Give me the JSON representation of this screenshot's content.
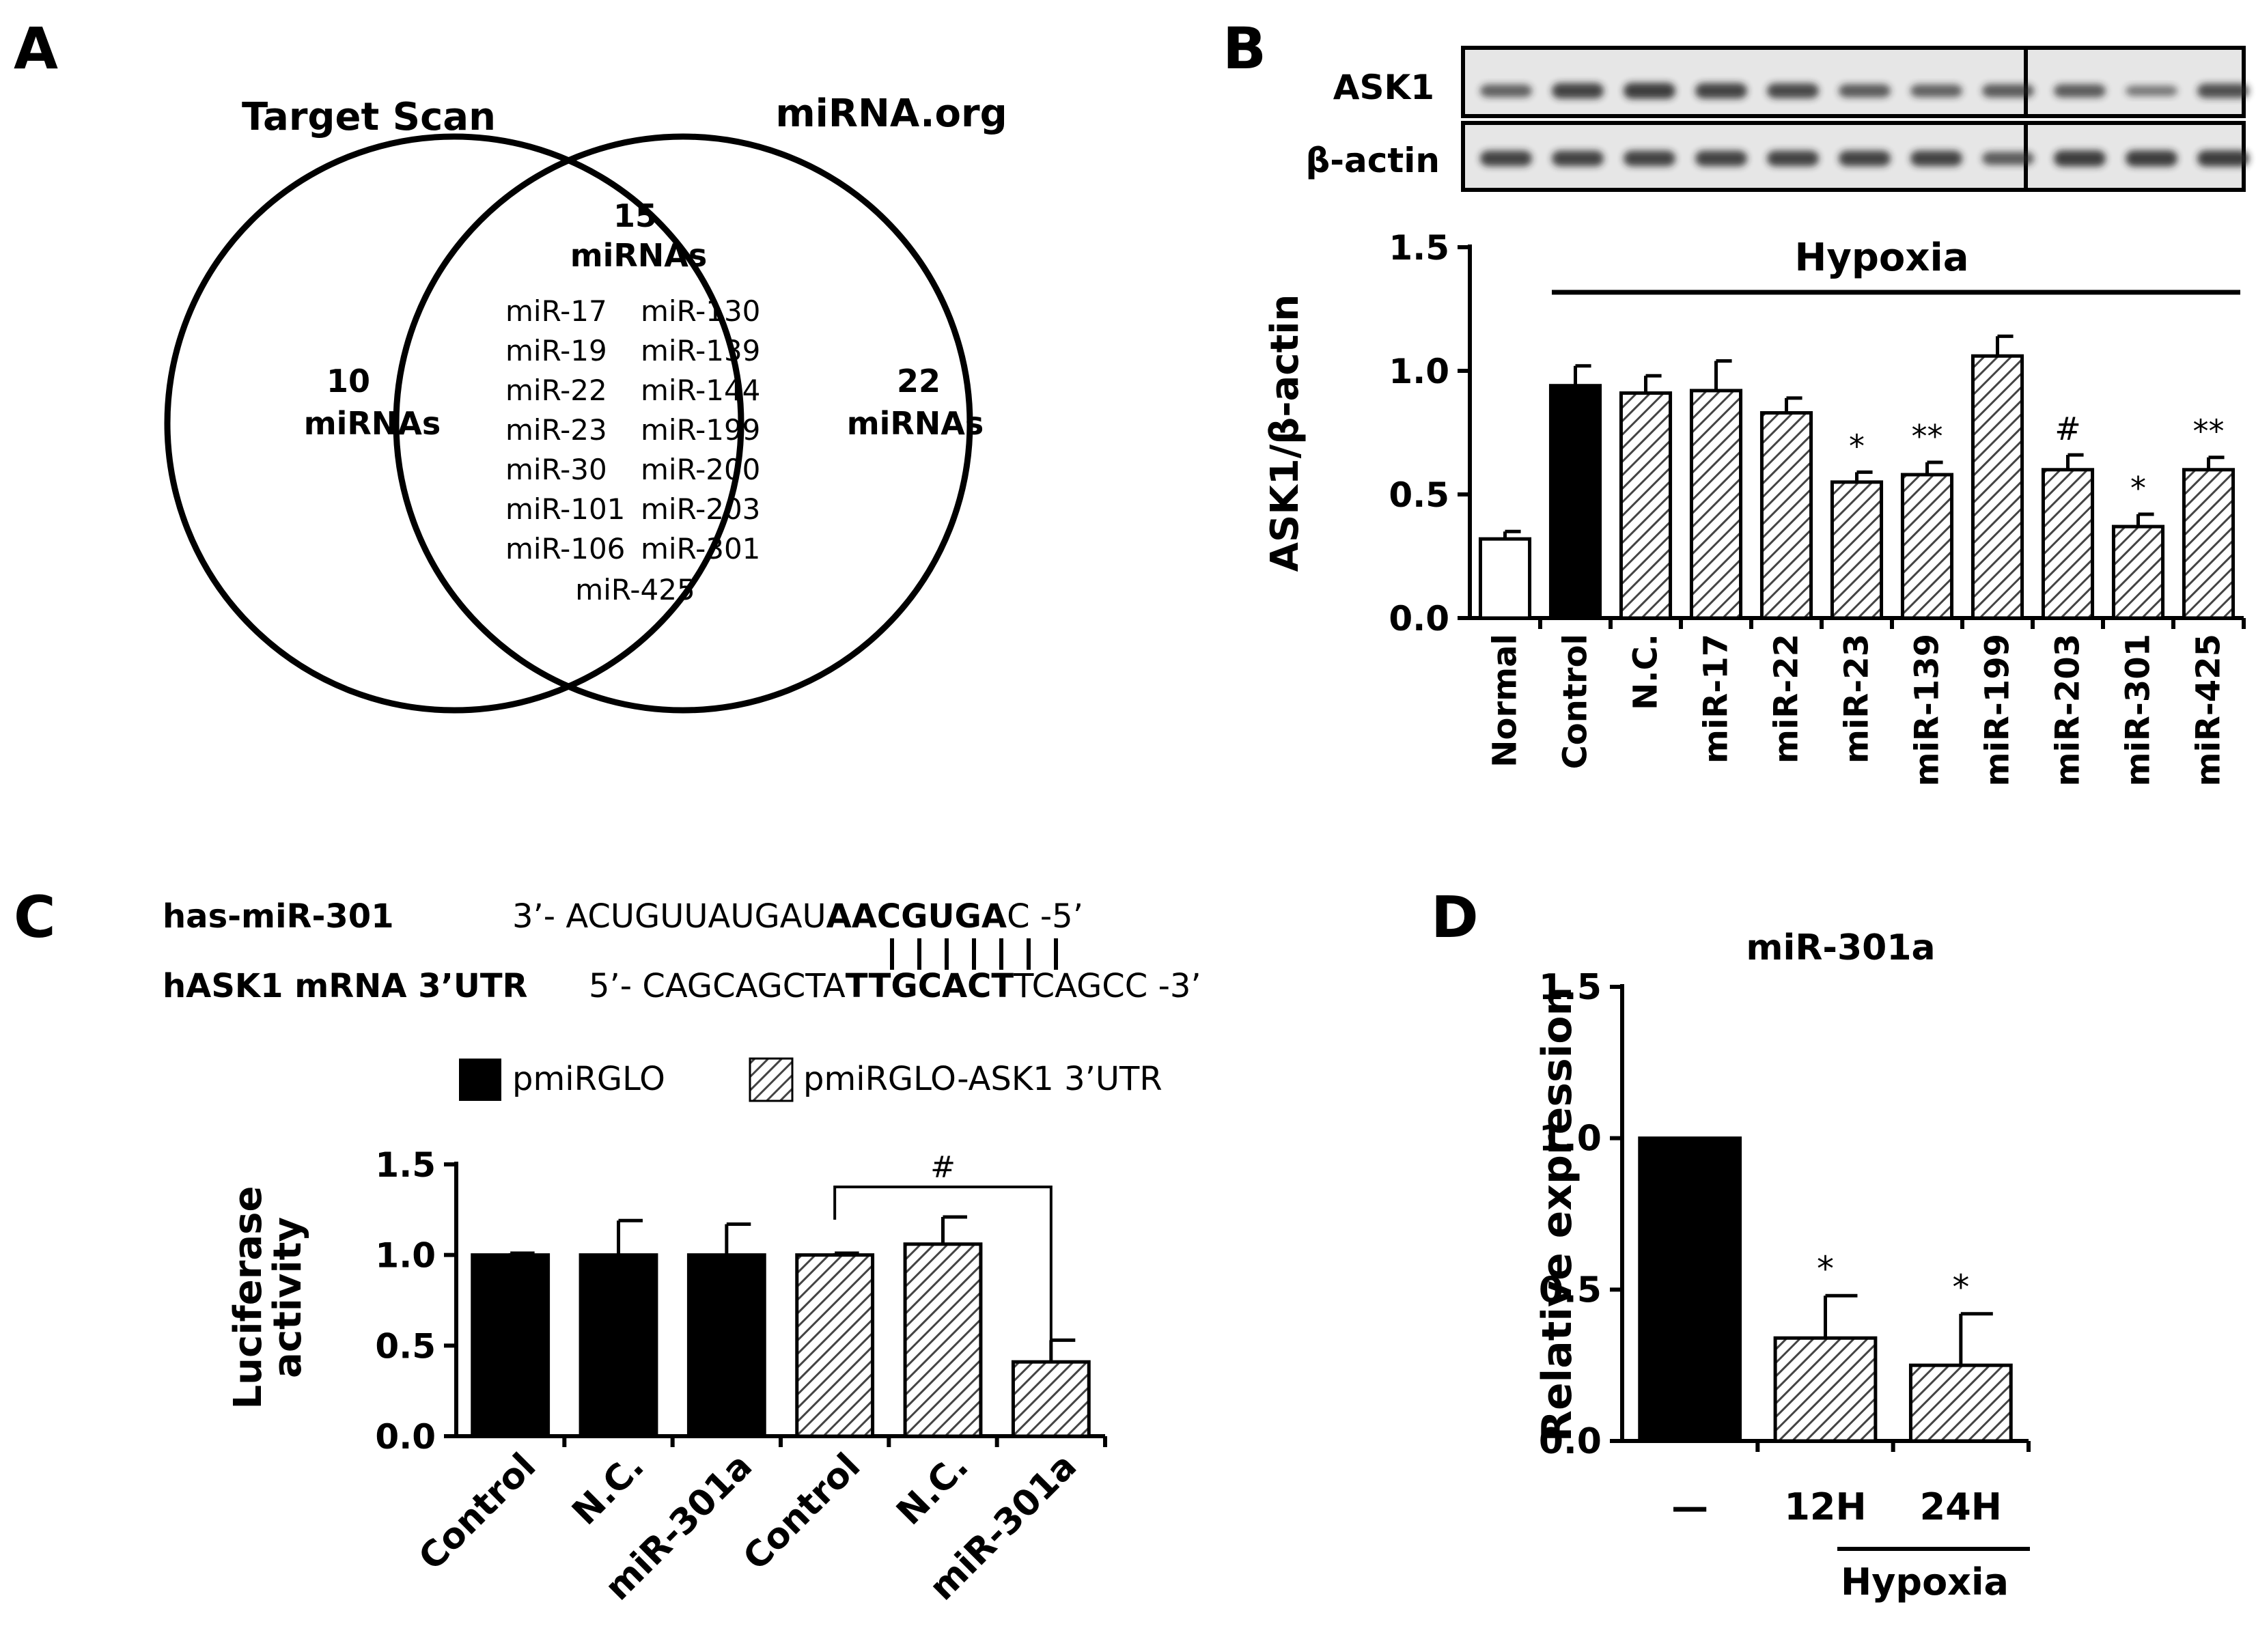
{
  "colors": {
    "black": "#000000",
    "white": "#ffffff",
    "hatch": "#444444",
    "blot_bg": "#e6e6e6",
    "band": "#222222"
  },
  "panelA": {
    "letter": "A",
    "left_title": "Target Scan",
    "right_title": "miRNA.org",
    "left_count": "10",
    "left_unit": "miRNAs",
    "right_count": "22",
    "right_unit": "miRNAs",
    "center_count": "15",
    "center_unit": "miRNAs",
    "col1": [
      "miR-17",
      "miR-19",
      "miR-22",
      "miR-23",
      "miR-30",
      "miR-101",
      "miR-106"
    ],
    "col2": [
      "miR-130",
      "miR-139",
      "miR-144",
      "miR-199",
      "miR-200",
      "miR-203",
      "miR-301"
    ],
    "last": "miR-425"
  },
  "panelB": {
    "letter": "B",
    "blot_labels": [
      "ASK1",
      "β-actin"
    ],
    "ask1_band_intensity": [
      0.55,
      0.8,
      0.85,
      0.8,
      0.75,
      0.6,
      0.55,
      0.6,
      0.6,
      0.35,
      0.7
    ],
    "actin_band_intensity": [
      0.8,
      0.8,
      0.8,
      0.8,
      0.8,
      0.8,
      0.8,
      0.6,
      0.85,
      0.85,
      0.85
    ]
  },
  "panelC": {
    "letter": "C",
    "mir_label": "has-miR-301",
    "mir_seq_pre": "3’- ACUGUUAUGAU",
    "mir_seq_bold": "AACGUGA",
    "mir_seq_post": "C -5’",
    "utr_label": "hASK1 mRNA 3’UTR",
    "utr_seq_pre": "5’- CAGCAGCTA",
    "utr_seq_bold": "TTGCACT",
    "utr_seq_post": "TCAGCC -3’"
  },
  "panelD": {
    "letter": "D"
  },
  "chart_data": [
    {
      "type": "bar",
      "panel": "B",
      "categories": [
        "Normal",
        "Control",
        "N.C.",
        "miR-17",
        "miR-22",
        "miR-23",
        "miR-139",
        "miR-199",
        "miR-203",
        "miR-301",
        "miR-425"
      ],
      "values": [
        0.32,
        0.94,
        0.91,
        0.92,
        0.83,
        0.55,
        0.58,
        1.06,
        0.6,
        0.37,
        0.6
      ],
      "errors": [
        0.03,
        0.08,
        0.07,
        0.12,
        0.06,
        0.04,
        0.05,
        0.08,
        0.06,
        0.05,
        0.05
      ],
      "styles": [
        "white",
        "black",
        "hatch",
        "hatch",
        "hatch",
        "hatch",
        "hatch",
        "hatch",
        "hatch",
        "hatch",
        "hatch"
      ],
      "annotations": [
        "",
        "",
        "",
        "",
        "",
        "*",
        "**",
        "",
        "#",
        "*",
        "**"
      ],
      "ylabel": "ASK1/β-actin",
      "ylim": [
        0,
        1.5
      ],
      "yticks": [
        "0.0",
        "0.5",
        "1.0",
        "1.5"
      ],
      "group_label": "Hypoxia"
    },
    {
      "type": "bar",
      "panel": "C",
      "categories": [
        "Control",
        "N.C.",
        "miR-301a",
        "Control",
        "N.C.",
        "miR-301a"
      ],
      "values": [
        1.0,
        1.0,
        1.0,
        1.0,
        1.06,
        0.41
      ],
      "errors": [
        0.01,
        0.19,
        0.17,
        0.01,
        0.15,
        0.12
      ],
      "styles": [
        "black",
        "black",
        "black",
        "hatch",
        "hatch",
        "hatch"
      ],
      "legend": [
        "pmiRGLO",
        "pmiRGLO-ASK1 3’UTR"
      ],
      "ylabel": "Luciferase activity",
      "ylabel_lines": [
        "Luciferase",
        "activity"
      ],
      "ylim": [
        0,
        1.5
      ],
      "yticks": [
        "0.0",
        "0.5",
        "1.0",
        "1.5"
      ],
      "bracket_label": "#"
    },
    {
      "type": "bar",
      "panel": "D",
      "title": "miR-301a",
      "categories": [
        "—",
        "12H",
        "24H"
      ],
      "values": [
        1.0,
        0.34,
        0.25
      ],
      "errors": [
        0.0,
        0.14,
        0.17
      ],
      "styles": [
        "black",
        "hatch",
        "hatch"
      ],
      "annotations": [
        "",
        "*",
        "*"
      ],
      "ylabel": "Relative expression",
      "ylim": [
        0,
        1.5
      ],
      "yticks": [
        "0.0",
        "0.5",
        "1.0",
        "1.5"
      ],
      "group_label": "Hypoxia"
    }
  ]
}
